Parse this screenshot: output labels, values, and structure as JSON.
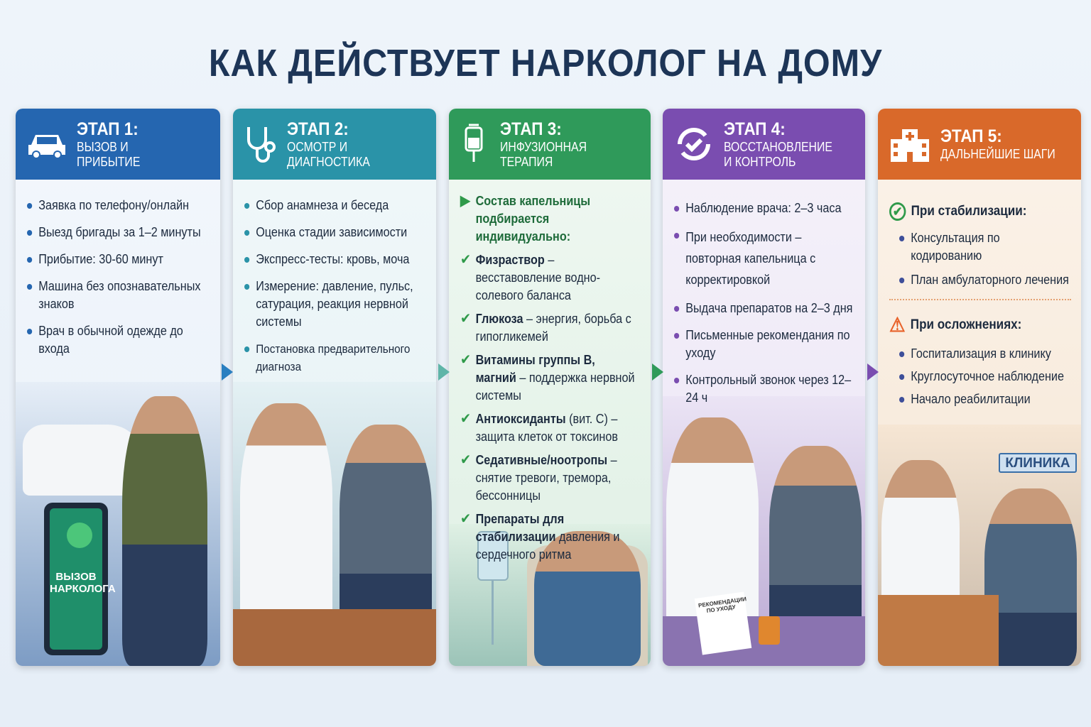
{
  "title": "КАК ДЕЙСТВУЕТ НАРКОЛОГ НА ДОМУ",
  "colors": {
    "stage1": "#2566b0",
    "stage2": "#2a93a8",
    "stage3": "#2f9a5a",
    "stage4": "#7a4db0",
    "stage5": "#d9692a"
  },
  "stages": [
    {
      "stage": "ЭТАП 1:",
      "subtitle": "ВЫЗОВ И ПРИБЫТИЕ",
      "icon": "car-icon",
      "items": [
        "Заявка по телефону/онлайн",
        "Выезд бригады за 1–2 минуты",
        "Прибытие: 30-60 минут",
        "Машина без опознавательных знаков",
        "Врач в обычной одежде до входа"
      ],
      "illustration_text": "ВЫЗОВ НАРКОЛОГА"
    },
    {
      "stage": "ЭТАП 2:",
      "subtitle": "ОСМОТР И ДИАГНОСТИКА",
      "icon": "stethoscope-icon",
      "items": [
        "Сбор анамнеза и беседа",
        "Оценка стадии зависимости",
        "Экспресс-тесты: кровь, моча",
        "Измерение: давление, пульс, сатурация, реакция нервной системы",
        "Постановка предварительного диагноза"
      ]
    },
    {
      "stage": "ЭТАП 3:",
      "subtitle": "ИНФУЗИОННАЯ ТЕРАПИЯ",
      "icon": "iv-drip-icon",
      "lead": "Состав капельницы подбирается индивидуально:",
      "items": [
        {
          "bold": "Физраствор",
          "text": " – весставовление водно-солевого баланса"
        },
        {
          "bold": "Глюкоза",
          "text": " – энергия, борьба с гипогликемей"
        },
        {
          "bold": "Витамины группы B, магний",
          "text": " – поддержка нервной системы"
        },
        {
          "bold": "Антиоксиданты",
          "text": " (вит. С) – защита клеток от токсинов"
        },
        {
          "bold": "Седативные/ноотропы",
          "text": " – снятие тревоги, тремора, бессонницы"
        },
        {
          "bold": "Препараты для стабилизации",
          "text": " давления и сердечного ритма"
        }
      ]
    },
    {
      "stage": "ЭТАП 4:",
      "subtitle": "ВОССТАНОВЛЕНИЕ\nИ КОНТРОЛЬ",
      "icon": "refresh-check-icon",
      "items": [
        "Наблюдение врача: 2–3 часа",
        "При необходимости – повторная капельница с корректировкой",
        "Выдача препаратов на 2–3 дня",
        "Письменные рекомендания по уходу",
        "Контрольный звонок через 12–24 ч"
      ],
      "illustration_text": "РЕКОМЕНДАЦИИ ПО УХОДУ"
    },
    {
      "stage": "ЭТАП 5:",
      "subtitle": "ДАЛЬНЕЙШИЕ ШАГИ",
      "icon": "hospital-icon",
      "stable_title": "При стабилизации:",
      "stable_items": [
        "Консультация по кодированию",
        "План амбулаторного лечения"
      ],
      "compl_title": "При осложнениях:",
      "compl_items": [
        "Госпитализация в клинику",
        "Круглосуточное наблюдение",
        "Начало реабилитации"
      ],
      "illustration_text": "КЛИНИКА"
    }
  ]
}
